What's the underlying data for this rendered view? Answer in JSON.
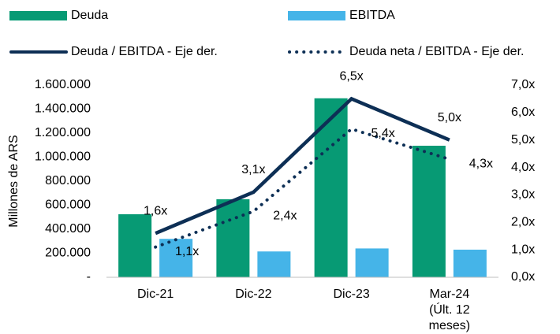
{
  "chart_data": {
    "type": "combo",
    "ylabel": "Millones de ARS",
    "categories": [
      "Dic-21",
      "Dic-22",
      "Dic-23",
      "Mar-24\n(Últ. 12\nmeses)"
    ],
    "series": [
      {
        "name": "Deuda",
        "type": "bar",
        "axis": "y",
        "color": "#079a74",
        "values": [
          525000,
          650000,
          1490000,
          1095000
        ]
      },
      {
        "name": "EBITDA",
        "type": "bar",
        "axis": "y",
        "color": "#45b4e8",
        "values": [
          320000,
          215000,
          240000,
          230000
        ]
      },
      {
        "name": "Deuda / EBITDA - Eje der.",
        "type": "line",
        "axis": "y2",
        "color": "#0d2f55",
        "line_style": "solid",
        "values": [
          1.6,
          3.1,
          6.5,
          5.0
        ],
        "value_labels": [
          "1,6x",
          "3,1x",
          "6,5x",
          "5,0x"
        ]
      },
      {
        "name": "Deuda neta  / EBITDA - Eje der.",
        "type": "line",
        "axis": "y2",
        "color": "#0d2f55",
        "line_style": "dotted",
        "values": [
          1.1,
          2.4,
          5.4,
          4.3
        ],
        "value_labels": [
          "1,1x",
          "2,4x",
          "5,4x",
          "4,3x"
        ]
      }
    ],
    "ylim": [
      0,
      1600000
    ],
    "yticks": [
      {
        "value": 0,
        "label": "-"
      },
      {
        "value": 200000,
        "label": "200.000"
      },
      {
        "value": 400000,
        "label": "400.000"
      },
      {
        "value": 600000,
        "label": "600.000"
      },
      {
        "value": 800000,
        "label": "800.000"
      },
      {
        "value": 1000000,
        "label": "1.000.000"
      },
      {
        "value": 1200000,
        "label": "1.200.000"
      },
      {
        "value": 1400000,
        "label": "1.400.000"
      },
      {
        "value": 1600000,
        "label": "1.600.000"
      }
    ],
    "y2lim": [
      0,
      7
    ],
    "y2ticks": [
      {
        "value": 0,
        "label": "0,0x"
      },
      {
        "value": 1,
        "label": "1,0x"
      },
      {
        "value": 2,
        "label": "2,0x"
      },
      {
        "value": 3,
        "label": "3,0x"
      },
      {
        "value": 4,
        "label": "4,0x"
      },
      {
        "value": 5,
        "label": "5,0x"
      },
      {
        "value": 6,
        "label": "6,0x"
      },
      {
        "value": 7,
        "label": "7,0x"
      }
    ],
    "legend": "top"
  }
}
